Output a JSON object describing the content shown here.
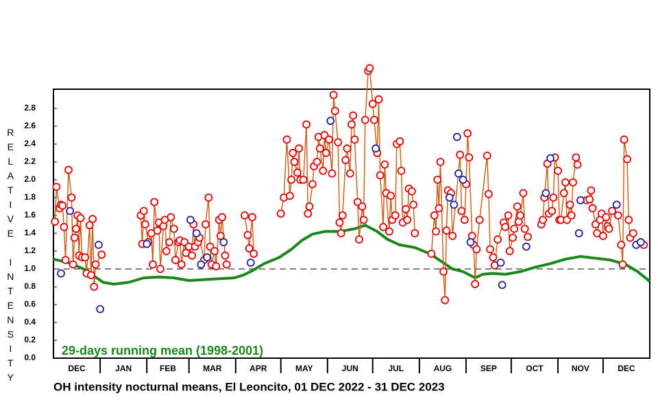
{
  "chart_data": {
    "type": "line",
    "title": "OH intensity nocturnal means, El Leoncito, 01 DEC 2022 - 31 DEC 2023",
    "y_label": "RELATIVE INTENSITY",
    "annotation": "29-days running mean (1998-2001)",
    "xlim": [
      0,
      396
    ],
    "xticks": [
      31,
      62,
      90,
      121,
      151,
      182,
      212,
      243,
      274,
      304,
      335,
      365
    ],
    "months": [
      "DEC",
      "JAN",
      "FEB",
      "MAR",
      "APR",
      "MAY",
      "JUN",
      "JUL",
      "AUG",
      "SEP",
      "OCT",
      "NOV",
      "DEC"
    ],
    "ylim": [
      0,
      3.015
    ],
    "yticks": [
      {
        "value": 0,
        "label": "0.0"
      },
      0.2,
      0.4,
      0.6,
      0.8,
      {
        "value": 1,
        "label": "1.0"
      },
      1.2,
      1.4,
      1.6,
      1.8,
      {
        "value": 2,
        "label": "2.0"
      },
      2.2,
      2.4,
      2.6,
      2.8
    ],
    "reference_line": 1,
    "series": [
      {
        "color": "#e00000",
        "line_color": "#c8641e",
        "marker": "open-circle",
        "connected": true,
        "x": [
          1,
          2,
          4,
          5,
          6,
          7,
          8,
          10,
          12,
          13,
          14,
          15,
          16,
          17,
          18,
          19,
          21,
          22,
          24,
          25,
          26,
          27,
          28,
          32,
          45,
          58,
          59,
          60,
          61,
          63,
          65,
          66,
          67,
          69,
          70,
          71,
          73,
          74,
          75,
          77,
          78,
          80,
          81,
          83,
          84,
          85,
          87,
          88,
          90,
          92,
          93,
          94,
          96,
          97,
          100,
          101,
          103,
          104,
          105,
          107,
          108,
          110,
          111,
          112,
          114,
          115,
          120,
          127,
          129,
          130,
          132,
          133,
          140,
          151,
          153,
          155,
          157,
          158,
          159,
          160,
          162,
          163,
          164,
          166,
          168,
          169,
          170,
          172,
          173,
          175,
          176,
          177,
          179,
          180,
          181,
          183,
          185,
          186,
          187,
          189,
          190,
          191,
          192,
          194,
          195,
          197,
          198,
          199,
          200,
          202,
          203,
          205,
          206,
          207,
          209,
          210,
          212,
          213,
          215,
          216,
          217,
          219,
          220,
          221,
          223,
          224,
          225,
          227,
          228,
          230,
          231,
          232,
          234,
          235,
          236,
          238,
          239,
          240,
          245,
          251,
          253,
          254,
          255,
          256,
          257,
          259,
          260,
          261,
          262,
          264,
          265,
          270,
          271,
          273,
          274,
          275,
          276,
          278,
          279,
          280,
          281,
          283,
          288,
          289,
          290,
          292,
          293,
          295,
          299,
          300,
          302,
          303,
          305,
          306,
          308,
          309,
          310,
          312,
          313,
          315,
          320,
          324,
          325,
          326,
          328,
          329,
          331,
          332,
          333,
          335,
          336,
          337,
          339,
          340,
          341,
          343,
          344,
          345,
          347,
          348,
          351,
          354,
          356,
          357,
          358,
          360,
          361,
          363,
          364,
          365,
          367,
          368,
          369,
          371,
          375,
          377,
          378,
          379,
          381,
          382,
          383,
          385,
          388,
          392
        ],
        "values": [
          1.53,
          1.92,
          1.68,
          1.72,
          1.71,
          1.47,
          1.1,
          2.11,
          1.8,
          1.05,
          1.35,
          1.45,
          1.6,
          1.15,
          1.57,
          1.13,
          1.13,
          0.95,
          1.49,
          0.93,
          1.56,
          0.8,
          1.05,
          1.16,
          null,
          1.6,
          1.28,
          1.65,
          1.5,
          1.3,
          1.4,
          1.05,
          1.75,
          1.43,
          1.52,
          1.0,
          1.48,
          1.55,
          1.2,
          1.3,
          1.58,
          1.45,
          1.1,
          1.3,
          1.32,
          1.05,
          1.3,
          1.18,
          1.25,
          1.15,
          1.5,
          1.25,
          1.3,
          1.35,
          1.1,
          1.5,
          1.8,
          1.25,
          1.05,
          1.2,
          1.03,
          1.55,
          1.37,
          1.58,
          1.15,
          1.05,
          null,
          1.6,
          1.38,
          1.23,
          1.58,
          1.17,
          null,
          1.62,
          1.8,
          2.45,
          1.82,
          2.0,
          2.3,
          2.2,
          2.08,
          2.35,
          2.0,
          2.0,
          2.62,
          1.62,
          1.7,
          1.95,
          2.15,
          2.2,
          2.48,
          2.35,
          2.1,
          2.5,
          2.3,
          2.45,
          2.07,
          2.95,
          2.77,
          2.42,
          1.52,
          1.4,
          1.6,
          2.22,
          2.35,
          2.07,
          2.62,
          2.72,
          2.45,
          1.75,
          1.33,
          1.7,
          1.55,
          2.67,
          3.22,
          3.25,
          2.85,
          2.67,
          2.3,
          2.9,
          2.05,
          1.47,
          2.17,
          1.85,
          1.42,
          1.82,
          1.55,
          1.6,
          2.4,
          2.43,
          2.1,
          1.52,
          1.67,
          1.55,
          1.9,
          1.87,
          1.72,
          1.4,
          null,
          1.17,
          1.6,
          1.42,
          2.0,
          1.68,
          2.2,
          0.97,
          0.65,
          1.43,
          1.88,
          1.85,
          1.37,
          2.28,
          1.65,
          1.55,
          1.95,
          2.52,
          2.25,
          1.37,
          1.27,
          0.83,
          1.22,
          1.55,
          2.27,
          1.84,
          1.22,
          1.13,
          1.04,
          1.33,
          1.52,
          1.47,
          1.6,
          1.2,
          1.35,
          1.45,
          1.7,
          1.53,
          1.6,
          1.85,
          1.45,
          1.36,
          null,
          1.5,
          1.55,
          1.8,
          2.18,
          1.62,
          1.65,
          1.8,
          2.25,
          2.1,
          1.55,
          1.55,
          1.85,
          1.97,
          1.55,
          1.72,
          1.6,
          1.97,
          2.25,
          2.17,
          null,
          1.77,
          1.78,
          1.88,
          1.68,
          1.5,
          1.4,
          1.55,
          1.62,
          1.37,
          1.58,
          1.48,
          1.45,
          1.65,
          1.6,
          1.27,
          1.05,
          2.45,
          2.23,
          1.55,
          1.35,
          1.4,
          null,
          1.27
        ]
      },
      {
        "color": "#1e1e96",
        "marker": "open-circle",
        "connected": false,
        "x": [
          5,
          11,
          30,
          31,
          62,
          91,
          95,
          98,
          102,
          113,
          131,
          184,
          214,
          263,
          266,
          268,
          269,
          272,
          277,
          297,
          298,
          314,
          327,
          330,
          349,
          350,
          374,
          387,
          390
        ],
        "values": [
          0.95,
          1.65,
          1.27,
          0.55,
          1.28,
          1.55,
          1.4,
          1.05,
          1.13,
          1.3,
          1.07,
          2.66,
          2.35,
          1.8,
          1.72,
          2.48,
          2.07,
          2.0,
          1.3,
          1.07,
          0.82,
          1.25,
          1.85,
          2.24,
          1.4,
          1.77,
          1.72,
          1.27,
          1.3
        ]
      },
      {
        "name": "29-days running mean (1998-2001)",
        "color": "#1a871a",
        "marker": "none",
        "connected": true,
        "x": [
          0,
          10,
          20,
          27,
          33,
          40,
          50,
          60,
          70,
          80,
          90,
          100,
          110,
          120,
          126,
          132,
          140,
          150,
          158,
          165,
          172,
          180,
          190,
          200,
          207,
          215,
          222,
          230,
          240,
          250,
          258,
          265,
          272,
          280,
          285,
          292,
          300,
          310,
          320,
          330,
          340,
          350,
          360,
          370,
          380,
          388,
          396
        ],
        "values": [
          1.11,
          1.07,
          1.0,
          0.92,
          0.85,
          0.83,
          0.85,
          0.9,
          0.91,
          0.9,
          0.87,
          0.88,
          0.89,
          0.9,
          0.93,
          0.98,
          1.06,
          1.13,
          1.22,
          1.32,
          1.39,
          1.42,
          1.42,
          1.45,
          1.49,
          1.42,
          1.33,
          1.27,
          1.24,
          1.17,
          1.08,
          1.0,
          0.97,
          0.9,
          0.94,
          0.95,
          0.94,
          0.97,
          1.02,
          1.06,
          1.11,
          1.14,
          1.12,
          1.1,
          1.05,
          0.97,
          0.86
        ]
      }
    ]
  }
}
